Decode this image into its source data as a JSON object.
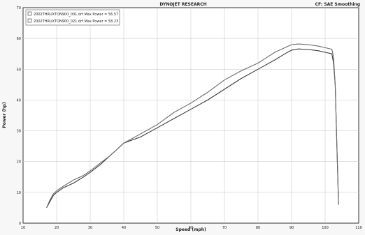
{
  "header": {
    "title": "DYNOJET RESEARCH",
    "corr": "CF: SAE Smoothing"
  },
  "chart_data": {
    "type": "line",
    "title": "DYNOJET RESEARCH",
    "xlabel": "Speed (mph)",
    "ylabel": "Power (hp)",
    "xlim": [
      10,
      110
    ],
    "ylim": [
      0,
      70
    ],
    "xticks": [
      10,
      20,
      30,
      40,
      50,
      60,
      70,
      80,
      90,
      100,
      110
    ],
    "yticks": [
      0,
      10,
      20,
      30,
      40,
      50,
      60,
      70
    ],
    "grid": true,
    "legend_position": "top-left",
    "series": [
      {
        "name": "2002THRUXTON900_001.drf Max Power = 56.57",
        "x": [
          17,
          18,
          19,
          20,
          22,
          25,
          28,
          30,
          33,
          36,
          38,
          40,
          45,
          50,
          55,
          60,
          65,
          70,
          75,
          80,
          85,
          88,
          90,
          92,
          95,
          98,
          100,
          102,
          102.5,
          103,
          103.5,
          104
        ],
        "y": [
          5,
          7,
          9,
          10,
          11.5,
          13,
          15,
          16.5,
          19,
          22,
          24,
          26,
          28,
          31,
          34,
          37,
          40,
          43.5,
          47,
          50,
          53,
          55,
          56.2,
          56.6,
          56.4,
          56.0,
          55.5,
          55.0,
          52,
          45,
          25,
          6
        ]
      },
      {
        "name": "2002THRUXTON900_021.drf Max Power = 58.23",
        "x": [
          17,
          18,
          19,
          20,
          22,
          25,
          28,
          30,
          33,
          36,
          38,
          40,
          45,
          50,
          55,
          60,
          65,
          70,
          75,
          80,
          85,
          88,
          90,
          92,
          95,
          98,
          100,
          102,
          102.5,
          103,
          103.5,
          104
        ],
        "y": [
          5,
          7.5,
          9.5,
          10.5,
          12,
          14,
          15.5,
          17,
          19.5,
          22,
          24,
          26,
          29,
          32,
          36,
          39,
          42.5,
          46.5,
          49.5,
          52,
          55.5,
          57,
          58,
          58.2,
          58,
          57.5,
          57,
          56.5,
          54,
          45,
          25,
          6
        ]
      }
    ]
  }
}
